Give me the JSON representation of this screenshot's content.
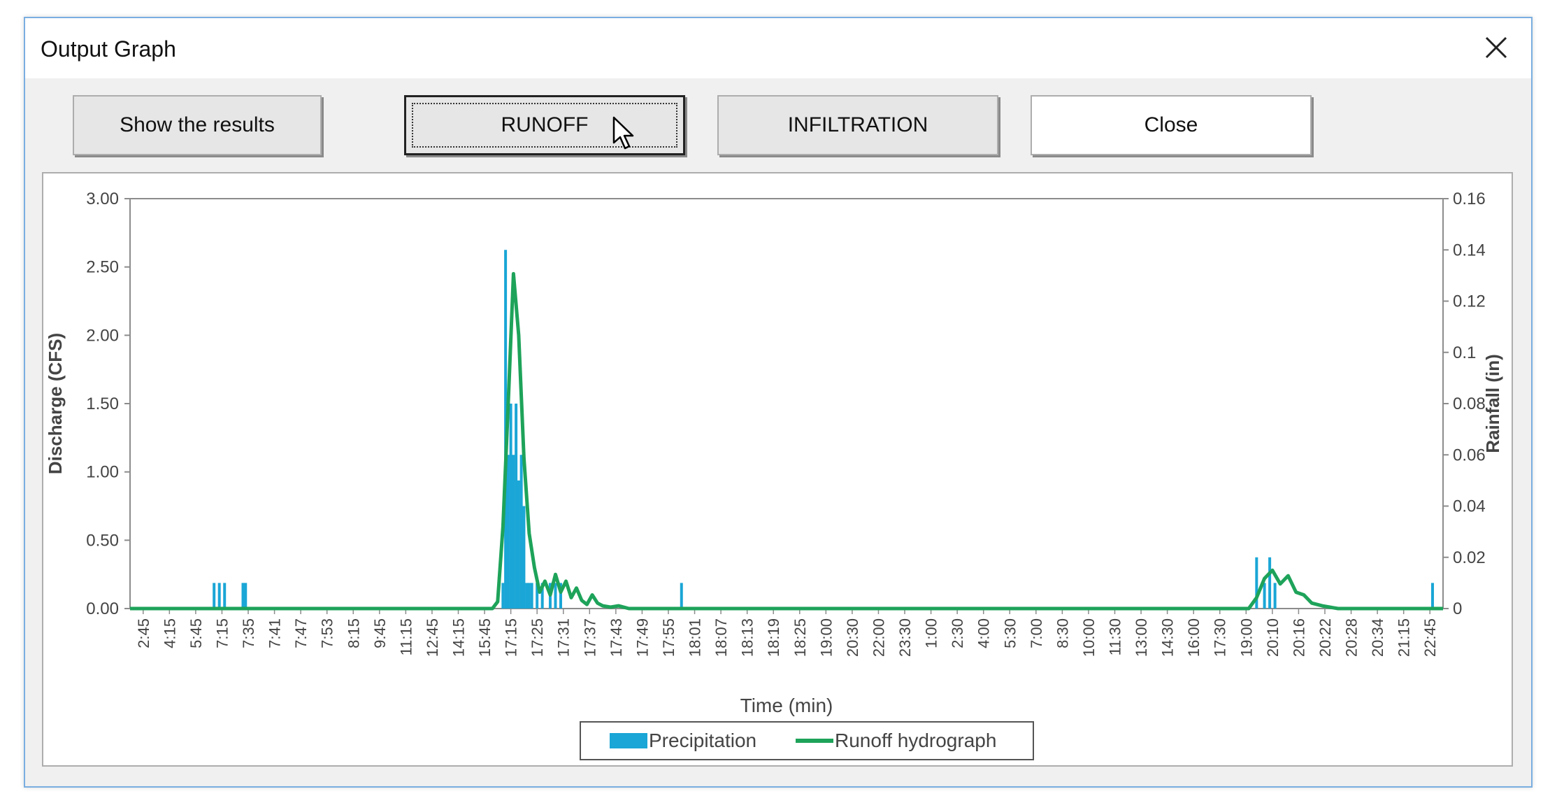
{
  "window": {
    "title": "Output Graph"
  },
  "buttons": {
    "show_results": "Show the results",
    "runoff": "RUNOFF",
    "infiltration": "INFILTRATION",
    "close": "Close"
  },
  "icons": {
    "close": "close-icon",
    "cursor": "mouse-cursor-icon"
  },
  "chart_data": {
    "type": "bar",
    "xlabel": "Time (min)",
    "ylabel": "Discharge (CFS)",
    "y2label": "Rainfall (in)",
    "ylim": [
      0,
      3
    ],
    "y2lim": [
      0,
      0.16
    ],
    "y_ticks": [
      "0.00",
      "0.50",
      "1.00",
      "1.50",
      "2.00",
      "2.50",
      "3.00"
    ],
    "y2_ticks": [
      "0",
      "0.02",
      "0.04",
      "0.06",
      "0.08",
      "0.1",
      "0.12",
      "0.14",
      "0.16"
    ],
    "categories": [
      "2:45",
      "4:15",
      "5:45",
      "7:15",
      "7:35",
      "7:41",
      "7:47",
      "7:53",
      "8:15",
      "9:45",
      "11:15",
      "12:45",
      "14:15",
      "15:45",
      "17:15",
      "17:25",
      "17:31",
      "17:37",
      "17:43",
      "17:49",
      "17:55",
      "18:01",
      "18:07",
      "18:13",
      "18:19",
      "18:25",
      "19:00",
      "20:30",
      "22:00",
      "23:30",
      "1:00",
      "2:30",
      "4:00",
      "5:30",
      "7:00",
      "8:30",
      "10:00",
      "11:30",
      "13:00",
      "14:30",
      "16:00",
      "17:30",
      "19:00",
      "20:10",
      "20:16",
      "20:22",
      "20:28",
      "20:34",
      "21:15",
      "22:45"
    ],
    "legend_placement": "bottom",
    "grid": false,
    "colors": {
      "precipitation": "#1aa6d6",
      "runoff": "#1ea35a"
    },
    "series": [
      {
        "name": "Precipitation",
        "axis": "secondary",
        "kind": "bar",
        "x": [
          3.2,
          3.4,
          3.6,
          4.3,
          4.4,
          14.2,
          14.3,
          14.4,
          14.5,
          14.6,
          14.7,
          14.8,
          14.9,
          15.0,
          15.1,
          15.2,
          15.3,
          15.5,
          15.7,
          16.0,
          16.2,
          16.4,
          21.0,
          42.9,
          43.2,
          43.4,
          43.6,
          49.6
        ],
        "values": [
          0.01,
          0.01,
          0.01,
          0.01,
          0.01,
          0.01,
          0.14,
          0.06,
          0.08,
          0.06,
          0.08,
          0.05,
          0.06,
          0.04,
          0.01,
          0.01,
          0.01,
          0.01,
          0.01,
          0.01,
          0.01,
          0.01,
          0.01,
          0.02,
          0.01,
          0.02,
          0.01,
          0.01
        ]
      },
      {
        "name": "Runoff hydrograph",
        "axis": "primary",
        "kind": "line",
        "x": [
          0,
          13.8,
          14.0,
          14.2,
          14.4,
          14.6,
          14.8,
          15.0,
          15.2,
          15.4,
          15.6,
          15.8,
          16.0,
          16.2,
          16.4,
          16.6,
          16.8,
          17.0,
          17.2,
          17.4,
          17.6,
          17.8,
          18.0,
          18.3,
          18.6,
          19.0,
          20.0,
          42.6,
          42.9,
          43.2,
          43.5,
          43.8,
          44.1,
          44.4,
          44.7,
          45.0,
          45.4,
          46.0,
          50.0
        ],
        "values": [
          0,
          0,
          0.05,
          0.6,
          1.5,
          2.45,
          2.0,
          1.1,
          0.55,
          0.3,
          0.12,
          0.2,
          0.1,
          0.25,
          0.12,
          0.2,
          0.08,
          0.15,
          0.06,
          0.03,
          0.1,
          0.04,
          0.02,
          0.01,
          0.02,
          0,
          0,
          0,
          0.08,
          0.22,
          0.28,
          0.18,
          0.24,
          0.12,
          0.1,
          0.04,
          0.02,
          0,
          0
        ]
      }
    ]
  }
}
